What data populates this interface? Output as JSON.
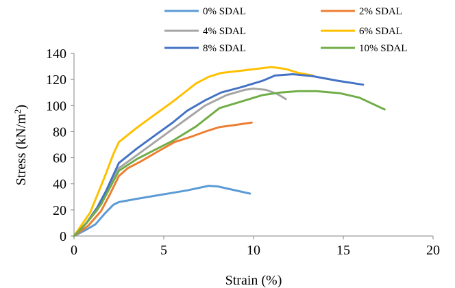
{
  "chart_data": {
    "type": "line",
    "title": "",
    "xlabel": "Strain (%)",
    "ylabel_main": "Stress (kN/m",
    "ylabel_sup": "2",
    "ylabel_tail": ")",
    "xlim": [
      0,
      20
    ],
    "ylim": [
      0,
      140
    ],
    "xticks": [
      0,
      5,
      10,
      15,
      20
    ],
    "yticks": [
      0,
      20,
      40,
      60,
      80,
      100,
      120,
      140
    ],
    "grid": false,
    "legend_position": "top",
    "series": [
      {
        "name": "0% SDAL",
        "color": "#5B9BD5",
        "points": [
          [
            0,
            0
          ],
          [
            0.7,
            5
          ],
          [
            1.2,
            9
          ],
          [
            1.7,
            17
          ],
          [
            2.2,
            24
          ],
          [
            2.5,
            26
          ],
          [
            3.5,
            28.5
          ],
          [
            4.8,
            31.5
          ],
          [
            6.3,
            35
          ],
          [
            7.5,
            38.5
          ],
          [
            8,
            38
          ],
          [
            9.8,
            32.5
          ]
        ]
      },
      {
        "name": "2% SDAL",
        "color": "#ED7D31",
        "points": [
          [
            0,
            0
          ],
          [
            0.8,
            8
          ],
          [
            1.5,
            19
          ],
          [
            2,
            32
          ],
          [
            2.5,
            46
          ],
          [
            3,
            52
          ],
          [
            3.7,
            57
          ],
          [
            4.7,
            65
          ],
          [
            5.6,
            72
          ],
          [
            6.5,
            76
          ],
          [
            7.4,
            80.5
          ],
          [
            8.1,
            83.5
          ],
          [
            9.2,
            85.5
          ],
          [
            9.9,
            87
          ]
        ]
      },
      {
        "name": "4% SDAL",
        "color": "#A5A5A5",
        "points": [
          [
            0,
            0
          ],
          [
            0.7,
            10
          ],
          [
            1.3,
            20
          ],
          [
            1.8,
            32
          ],
          [
            2.5,
            52
          ],
          [
            3.5,
            62
          ],
          [
            4.5,
            72
          ],
          [
            5.5,
            82
          ],
          [
            6.5,
            92
          ],
          [
            7.3,
            100
          ],
          [
            8.5,
            108
          ],
          [
            9.5,
            112
          ],
          [
            10,
            113
          ],
          [
            10.7,
            112
          ],
          [
            11.3,
            109
          ],
          [
            11.8,
            105
          ]
        ]
      },
      {
        "name": "6% SDAL",
        "color": "#FFC000",
        "points": [
          [
            0,
            0
          ],
          [
            0.9,
            18
          ],
          [
            1.7,
            45
          ],
          [
            2.2,
            63
          ],
          [
            2.5,
            72
          ],
          [
            3.5,
            83
          ],
          [
            4.5,
            93
          ],
          [
            5.5,
            103
          ],
          [
            6.8,
            117
          ],
          [
            7.5,
            122
          ],
          [
            8.2,
            125
          ],
          [
            9.5,
            127
          ],
          [
            11,
            129.5
          ],
          [
            11.8,
            128
          ],
          [
            12.5,
            125
          ],
          [
            13.3,
            123
          ]
        ]
      },
      {
        "name": "8% SDAL",
        "color": "#4472C4",
        "points": [
          [
            0,
            0
          ],
          [
            0.7,
            10
          ],
          [
            1.3,
            22
          ],
          [
            1.8,
            35
          ],
          [
            2.5,
            56
          ],
          [
            3.5,
            67
          ],
          [
            4.5,
            77
          ],
          [
            5.5,
            87
          ],
          [
            6.3,
            96
          ],
          [
            7.3,
            104
          ],
          [
            8.2,
            110
          ],
          [
            9.3,
            114
          ],
          [
            10.5,
            119
          ],
          [
            11.2,
            123
          ],
          [
            12.2,
            124
          ],
          [
            13.3,
            122.5
          ],
          [
            14.7,
            119
          ],
          [
            16.1,
            116
          ]
        ]
      },
      {
        "name": "10% SDAL",
        "color": "#70AD47",
        "points": [
          [
            0,
            0
          ],
          [
            0.7,
            10
          ],
          [
            1.5,
            24
          ],
          [
            2.5,
            50
          ],
          [
            3.5,
            59
          ],
          [
            4.5,
            66
          ],
          [
            5.5,
            73
          ],
          [
            6.8,
            84
          ],
          [
            8.1,
            98
          ],
          [
            9.3,
            103
          ],
          [
            10.5,
            108
          ],
          [
            11.5,
            110
          ],
          [
            12.5,
            111
          ],
          [
            13.5,
            111
          ],
          [
            14.8,
            109.5
          ],
          [
            15.9,
            106
          ],
          [
            17.3,
            97
          ]
        ]
      }
    ]
  }
}
